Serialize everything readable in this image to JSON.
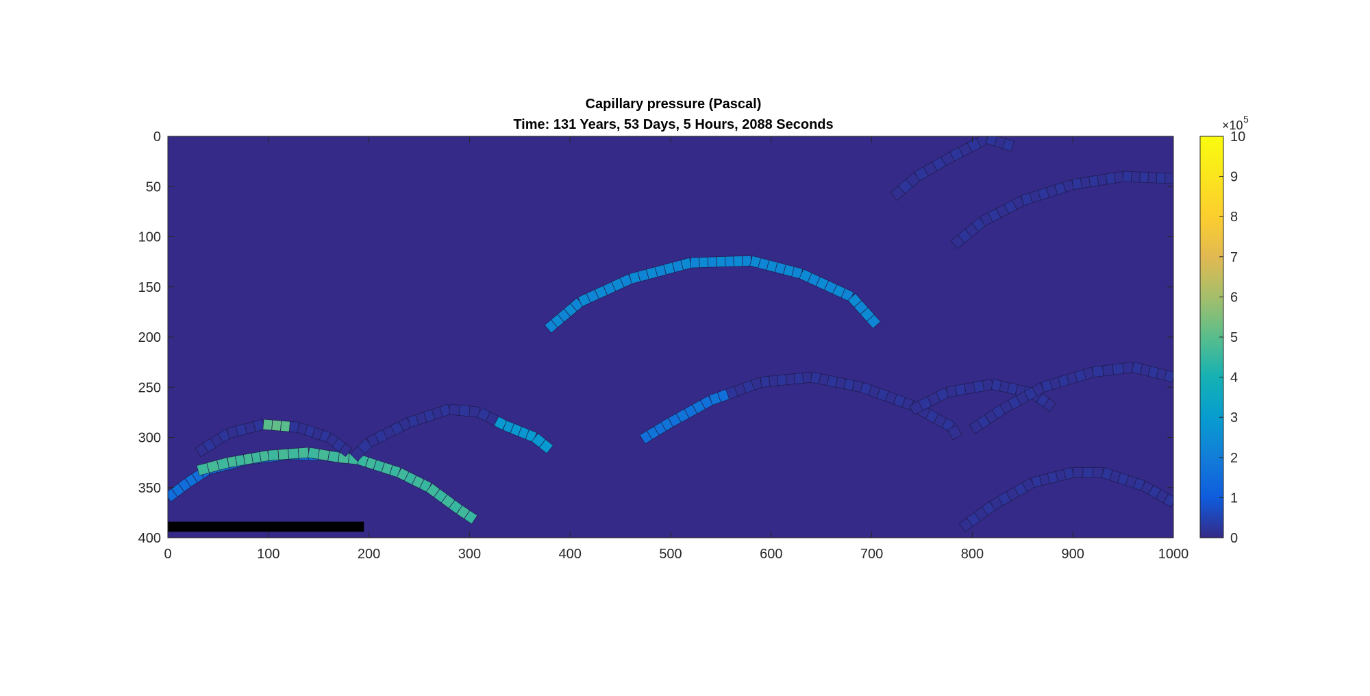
{
  "chart_data": {
    "type": "heatmap",
    "title": "Capillary pressure (Pascal)",
    "subtitle": "Time: 131 Years, 53 Days, 5 Hours, 2088 Seconds",
    "xlabel": "",
    "ylabel": "",
    "xlim": [
      0,
      1000
    ],
    "ylim": [
      0,
      400
    ],
    "y_reversed": true,
    "x_ticks": [
      "0",
      "100",
      "200",
      "300",
      "400",
      "500",
      "600",
      "700",
      "800",
      "900",
      "1000"
    ],
    "y_ticks": [
      "0",
      "50",
      "100",
      "150",
      "200",
      "250",
      "300",
      "350",
      "400"
    ],
    "grid": false,
    "background_value": 0,
    "colorbar": {
      "colormap": "parula",
      "range": [
        0,
        10
      ],
      "ticks": [
        "0",
        "1",
        "2",
        "3",
        "4",
        "5",
        "6",
        "7",
        "8",
        "9",
        "10"
      ],
      "multiplier_base": "×10",
      "multiplier_exp": "5"
    },
    "fractures": [
      {
        "points": [
          [
            0,
            360
          ],
          [
            20,
            345
          ],
          [
            40,
            332
          ],
          [
            80,
            322
          ],
          [
            120,
            317
          ],
          [
            160,
            318
          ],
          [
            180,
            320
          ]
        ],
        "value": 1.5,
        "end_value": 1.7
      },
      {
        "points": [
          [
            30,
            333
          ],
          [
            60,
            325
          ],
          [
            100,
            318
          ],
          [
            140,
            315
          ],
          [
            170,
            320
          ],
          [
            190,
            322
          ]
        ],
        "value": 4.6
      },
      {
        "points": [
          [
            190,
            322
          ],
          [
            230,
            335
          ],
          [
            260,
            350
          ],
          [
            290,
            372
          ],
          [
            305,
            382
          ]
        ],
        "value": 4.5
      },
      {
        "points": [
          [
            30,
            315
          ],
          [
            60,
            296
          ],
          [
            95,
            287
          ],
          [
            130,
            290
          ],
          [
            160,
            300
          ],
          [
            180,
            315
          ]
        ],
        "value": 0.1,
        "highlight": {
          "from": 95,
          "to": 125,
          "value": 5.0
        }
      },
      {
        "points": [
          [
            185,
            320
          ],
          [
            200,
            305
          ],
          [
            240,
            285
          ],
          [
            280,
            272
          ],
          [
            310,
            275
          ],
          [
            335,
            288
          ],
          [
            365,
            300
          ],
          [
            380,
            312
          ]
        ],
        "value": 0.1,
        "highlight": {
          "from": 325,
          "to": 380,
          "value": 2.8
        }
      },
      {
        "points": [
          [
            378,
            192
          ],
          [
            410,
            165
          ],
          [
            460,
            142
          ],
          [
            520,
            126
          ],
          [
            580,
            124
          ],
          [
            630,
            137
          ],
          [
            680,
            160
          ],
          [
            705,
            188
          ]
        ],
        "value": 2.3
      },
      {
        "points": [
          [
            472,
            302
          ],
          [
            500,
            285
          ],
          [
            540,
            263
          ],
          [
            590,
            245
          ],
          [
            640,
            240
          ],
          [
            690,
            250
          ],
          [
            740,
            268
          ],
          [
            780,
            290
          ],
          [
            785,
            300
          ]
        ],
        "value": 0.1,
        "highlight": {
          "from": 472,
          "to": 560,
          "value": 1.6
        }
      },
      {
        "points": [
          [
            740,
            273
          ],
          [
            775,
            255
          ],
          [
            820,
            247
          ],
          [
            860,
            256
          ],
          [
            880,
            270
          ]
        ],
        "value": 0.1
      },
      {
        "points": [
          [
            800,
            292
          ],
          [
            830,
            272
          ],
          [
            870,
            250
          ],
          [
            920,
            235
          ],
          [
            960,
            230
          ],
          [
            1000,
            240
          ]
        ],
        "value": 0.1
      },
      {
        "points": [
          [
            722,
            60
          ],
          [
            745,
            40
          ],
          [
            780,
            20
          ],
          [
            815,
            2
          ],
          [
            840,
            10
          ]
        ],
        "value": 0.1
      },
      {
        "points": [
          [
            782,
            108
          ],
          [
            810,
            85
          ],
          [
            850,
            64
          ],
          [
            900,
            48
          ],
          [
            950,
            40
          ],
          [
            1000,
            42
          ]
        ],
        "value": 0.1
      },
      {
        "points": [
          [
            790,
            390
          ],
          [
            820,
            368
          ],
          [
            860,
            345
          ],
          [
            900,
            335
          ],
          [
            930,
            335
          ],
          [
            970,
            348
          ],
          [
            1000,
            365
          ]
        ],
        "value": 0.1
      }
    ],
    "black_bar": {
      "x": [
        0,
        195
      ],
      "y": [
        384,
        394
      ]
    }
  }
}
